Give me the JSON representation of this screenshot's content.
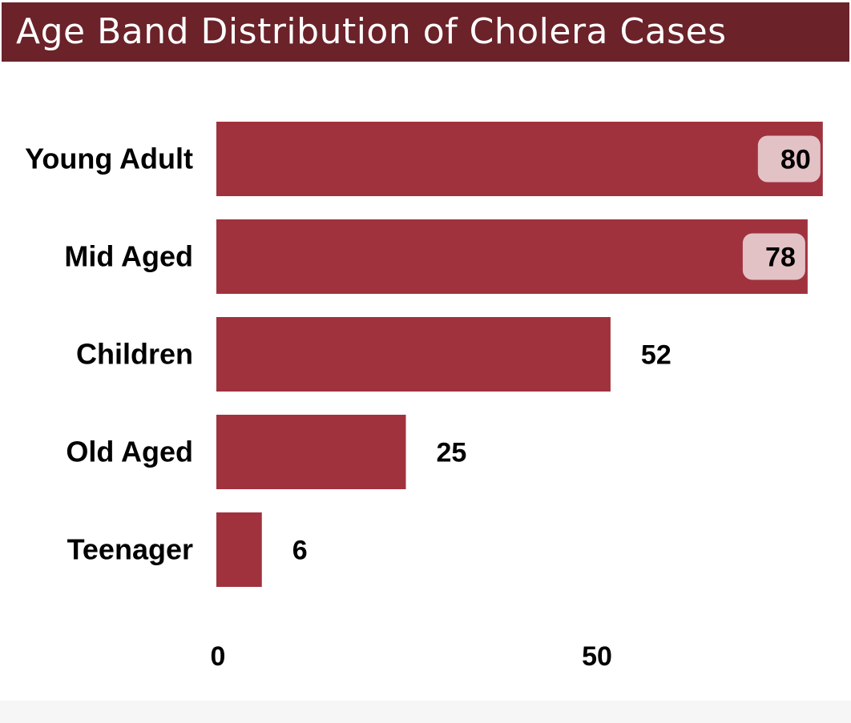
{
  "title": "Age Band Distribution of Cholera Cases",
  "colors": {
    "header_bg": "#6b2229",
    "bar": "#a0323d",
    "label_pill": "#e3c2c6",
    "background": "#ffffff"
  },
  "chart_data": {
    "type": "bar",
    "orientation": "horizontal",
    "title": "Age Band Distribution of Cholera Cases",
    "categories": [
      "Young Adult",
      "Mid Aged",
      "Children",
      "Old Aged",
      "Teenager"
    ],
    "values": [
      80,
      78,
      52,
      25,
      6
    ],
    "xticks": [
      0,
      50
    ],
    "xlim": [
      0,
      80
    ],
    "xlabel": "",
    "ylabel": "",
    "grid": false,
    "data_labels": true
  }
}
